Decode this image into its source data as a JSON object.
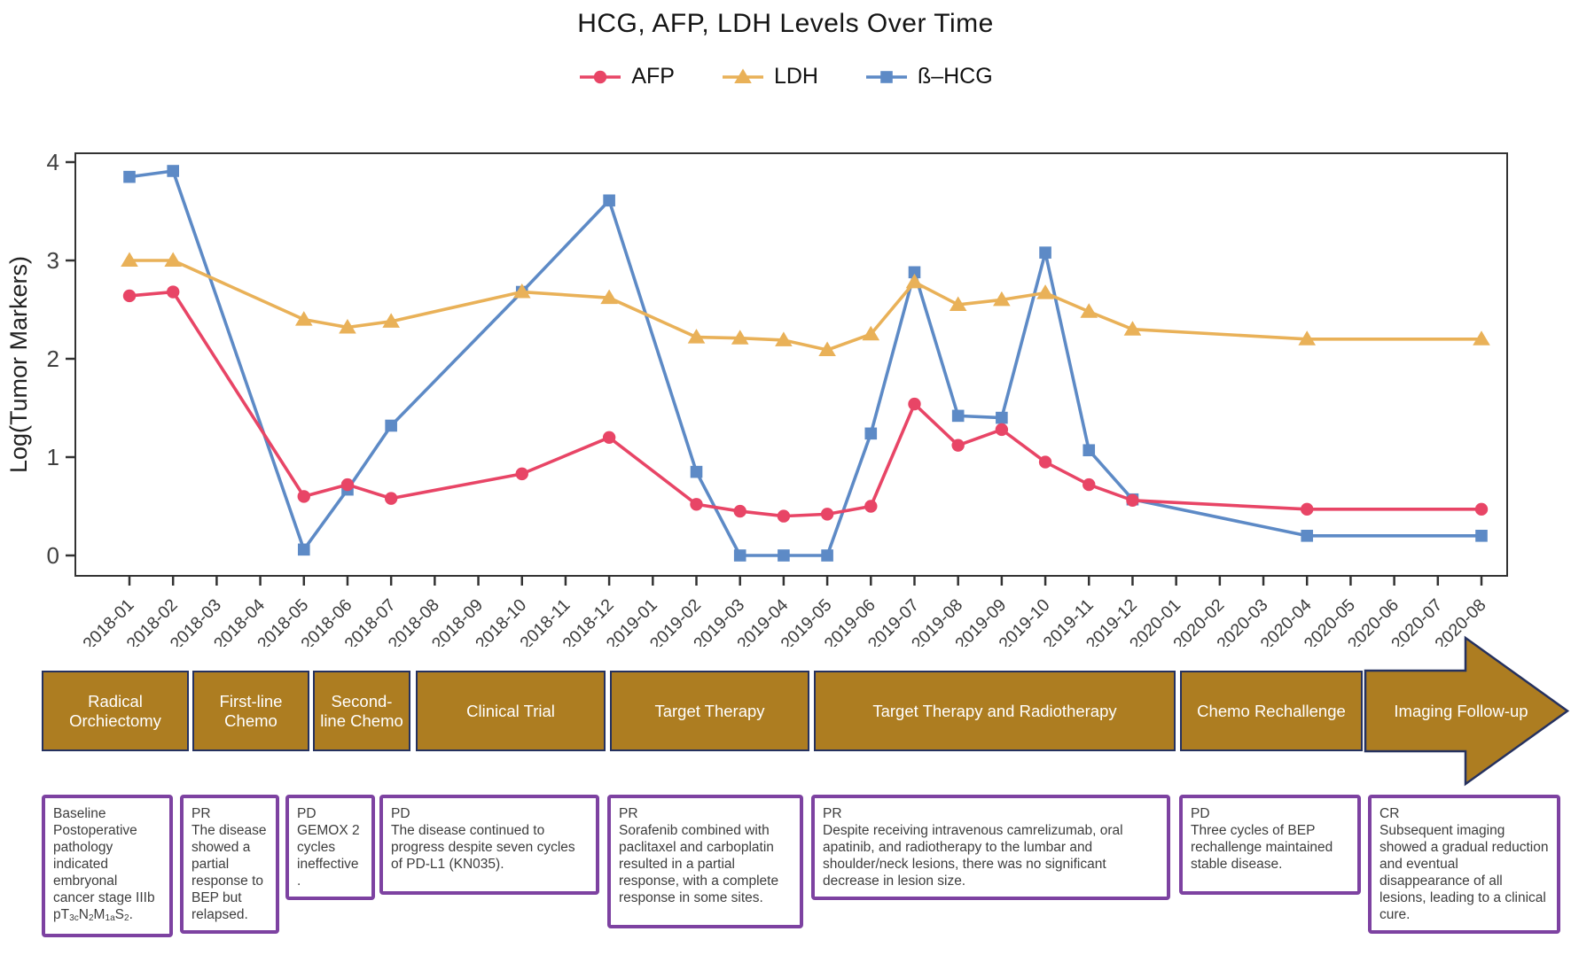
{
  "chart_data": {
    "type": "line",
    "title": "HCG, AFP, LDH Levels Over Time",
    "ylabel": "Log(Tumor Markers)",
    "xlabel": "",
    "ylim": [
      0,
      4
    ],
    "yticks": [
      0,
      1,
      2,
      3,
      4
    ],
    "grid": false,
    "legend_position": "top",
    "x_ticks": [
      "2018-01",
      "2018-02",
      "2018-03",
      "2018-04",
      "2018-05",
      "2018-06",
      "2018-07",
      "2018-08",
      "2018-09",
      "2018-10",
      "2018-11",
      "2018-12",
      "2019-01",
      "2019-02",
      "2019-03",
      "2019-04",
      "2019-05",
      "2019-06",
      "2019-07",
      "2019-08",
      "2019-09",
      "2019-10",
      "2019-11",
      "2019-12",
      "2020-01",
      "2020-02",
      "2020-03",
      "2020-04",
      "2020-05",
      "2020-06",
      "2020-07",
      "2020-08"
    ],
    "x": [
      "2018-01",
      "2018-02",
      "2018-05",
      "2018-06",
      "2018-07",
      "2018-10",
      "2018-12",
      "2019-02",
      "2019-03",
      "2019-04",
      "2019-05",
      "2019-06",
      "2019-07",
      "2019-08",
      "2019-09",
      "2019-10",
      "2019-11",
      "2019-12",
      "2020-04",
      "2020-08"
    ],
    "series": [
      {
        "name": "ß–HCG",
        "marker": "square",
        "color": "#5d8ac6",
        "values": [
          3.85,
          3.91,
          0.06,
          0.67,
          1.32,
          2.68,
          3.61,
          0.85,
          0.0,
          0.0,
          0.0,
          1.24,
          2.88,
          1.42,
          1.4,
          3.08,
          1.07,
          0.57,
          0.2,
          0.2
        ]
      },
      {
        "name": "LDH",
        "marker": "triangle",
        "color": "#e9b158",
        "values": [
          3.0,
          3.0,
          2.4,
          2.32,
          2.38,
          2.68,
          2.62,
          2.22,
          2.21,
          2.19,
          2.09,
          2.25,
          2.78,
          2.55,
          2.6,
          2.67,
          2.48,
          2.3,
          2.2,
          2.2
        ]
      },
      {
        "name": "AFP",
        "marker": "circle",
        "color": "#e84566",
        "values": [
          2.64,
          2.68,
          0.6,
          0.72,
          0.58,
          0.83,
          1.2,
          0.52,
          0.45,
          0.4,
          0.42,
          0.5,
          1.54,
          1.12,
          1.28,
          0.95,
          0.72,
          0.56,
          0.47,
          0.47
        ]
      }
    ],
    "legend_order": [
      "AFP",
      "LDH",
      "ß–HCG"
    ]
  },
  "timeline": {
    "segments": [
      {
        "label": "Radical Orchiectomy"
      },
      {
        "label": "First-line Chemo"
      },
      {
        "label": "Second-line Chemo"
      },
      {
        "label": "Clinical Trial"
      },
      {
        "label": "Target Therapy"
      },
      {
        "label": "Target Therapy and Radiotherapy"
      },
      {
        "label": "Chemo Rechallenge"
      },
      {
        "label": "Imaging Follow-up"
      }
    ]
  },
  "annotations": {
    "boxes": [
      {
        "title": "Baseline",
        "body": [
          {
            "t": "Postoperative pathology indicated embryonal cancer stage IIIb pT"
          },
          {
            "t": "3c",
            "sub": true
          },
          {
            "t": "N"
          },
          {
            "t": "2",
            "sub": true
          },
          {
            "t": "M"
          },
          {
            "t": "1a",
            "sub": true
          },
          {
            "t": "S"
          },
          {
            "t": "2",
            "sub": true
          },
          {
            "t": "."
          }
        ]
      },
      {
        "title": "PR",
        "body": [
          {
            "t": "The disease showed a partial response to BEP but relapsed."
          }
        ]
      },
      {
        "title": "PD",
        "body": [
          {
            "t": "GEMOX 2 cycles ineffective ."
          }
        ]
      },
      {
        "title": "PD",
        "body": [
          {
            "t": "The disease continued to progress despite seven cycles of PD-L1 (KN035)."
          }
        ]
      },
      {
        "title": "PR",
        "body": [
          {
            "t": "Sorafenib combined with paclitaxel and carboplatin resulted in a partial response, with a complete response in some sites."
          }
        ]
      },
      {
        "title": "PR",
        "body": [
          {
            "t": "Despite receiving intravenous camrelizumab, oral apatinib, and radiotherapy to the lumbar and shoulder/neck lesions, there was no significant decrease in lesion size."
          }
        ]
      },
      {
        "title": "PD",
        "body": [
          {
            "t": "Three cycles of BEP rechallenge maintained stable disease."
          }
        ]
      },
      {
        "title": "CR",
        "body": [
          {
            "t": "Subsequent imaging showed a gradual reduction and eventual disappearance of all lesions, leading to a clinical cure."
          }
        ]
      }
    ]
  },
  "colors": {
    "timeline_fill": "#ad7d21",
    "timeline_border": "#25315f",
    "annotation_border": "#7d42a1",
    "axis": "#333333",
    "title_text": "#151515"
  }
}
